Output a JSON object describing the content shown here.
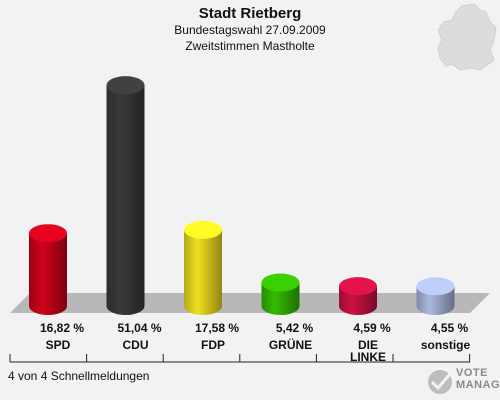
{
  "header": {
    "title": "Stadt Rietberg",
    "subtitle": "Bundestagswahl 27.09.2009",
    "subtitle2": "Zweitstimmen Mastholte"
  },
  "footer": {
    "text": "4 von 4 Schnellmeldungen"
  },
  "logo": {
    "line1": "VOTE",
    "line2": "MANAGER"
  },
  "chart_data": {
    "type": "bar",
    "categories": [
      "SPD",
      "CDU",
      "FDP",
      "GRÜNE",
      "DIE\nLINKE",
      "sonstige"
    ],
    "values": [
      16.82,
      51.04,
      17.58,
      5.42,
      4.59,
      4.55
    ],
    "value_labels": [
      "16,82 %",
      "51,04 %",
      "17,58 %",
      "5,42 %",
      "4,59 %",
      "4,55 %"
    ],
    "colors": [
      "#d0021b",
      "#3a3a3a",
      "#f0e020",
      "#33bb00",
      "#cc1144",
      "#aab8e0"
    ],
    "title": "Stadt Rietberg",
    "subtitle": "Bundestagswahl 27.09.2009 / Zweitstimmen Mastholte",
    "ylim": [
      0,
      55
    ],
    "grid": false,
    "legend": "none"
  }
}
